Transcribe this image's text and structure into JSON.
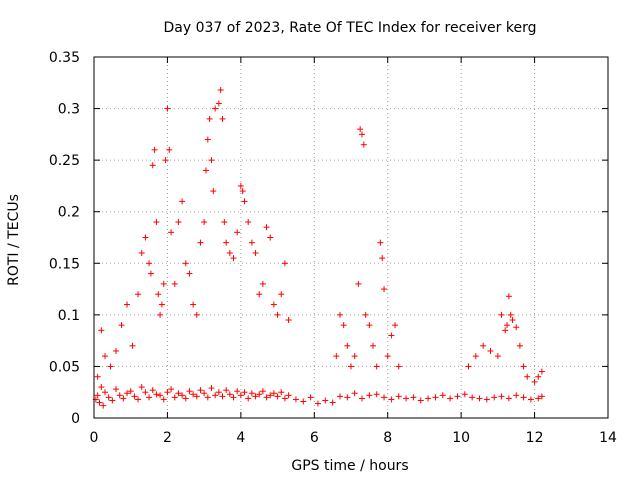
{
  "chart_data": {
    "type": "scatter",
    "title": "Day 037 of 2023, Rate Of TEC Index for receiver kerg",
    "xlabel": "GPS time / hours",
    "ylabel": "ROTI / TECUs",
    "xlim": [
      0,
      14
    ],
    "ylim": [
      0,
      0.35
    ],
    "xticks": [
      0,
      2,
      4,
      6,
      8,
      10,
      12,
      14
    ],
    "xtick_labels": [
      "0",
      "2",
      "4",
      "6",
      "8",
      "10",
      "12",
      "14"
    ],
    "yticks": [
      0,
      0.05,
      0.1,
      0.15,
      0.2,
      0.25,
      0.3,
      0.35
    ],
    "ytick_labels": [
      "0",
      "0.05",
      "0.1",
      "0.15",
      "0.2",
      "0.25",
      "0.3",
      "0.35"
    ],
    "grid": true,
    "marker": "plus",
    "marker_color": "#ff0000",
    "series": [
      {
        "x": [
          0.05,
          0.1,
          0.15,
          0.2,
          0.25,
          0.3,
          0.4,
          0.5,
          0.6,
          0.7,
          0.8,
          0.9,
          1.0,
          1.1,
          1.2,
          1.3,
          1.4,
          1.5,
          1.6,
          1.7,
          1.8,
          1.9,
          2.0,
          2.1,
          2.2,
          2.3,
          2.4,
          2.5,
          2.6,
          2.7,
          2.8,
          2.9,
          3.0,
          3.1,
          3.2,
          3.3,
          3.4,
          3.5,
          3.6,
          3.7,
          3.8,
          3.9,
          4.0,
          4.1,
          4.2,
          4.3,
          4.4,
          4.5,
          4.6,
          4.7,
          4.8,
          4.9,
          5.0,
          5.1,
          5.2,
          5.3,
          5.5,
          5.7,
          5.9,
          6.1,
          6.3,
          6.5,
          6.7,
          6.9,
          7.1,
          7.3,
          7.5,
          7.7,
          7.9,
          8.1,
          8.3,
          8.5,
          8.7,
          8.9,
          9.1,
          9.3,
          9.5,
          9.7,
          9.9,
          10.1,
          10.3,
          10.5,
          10.7,
          10.9,
          11.1,
          11.3,
          11.5,
          11.7,
          11.9,
          12.1,
          12.2
        ],
        "y": [
          0.018,
          0.022,
          0.015,
          0.03,
          0.012,
          0.025,
          0.02,
          0.017,
          0.028,
          0.022,
          0.019,
          0.024,
          0.026,
          0.021,
          0.018,
          0.03,
          0.025,
          0.02,
          0.027,
          0.023,
          0.022,
          0.018,
          0.025,
          0.028,
          0.02,
          0.024,
          0.022,
          0.019,
          0.026,
          0.023,
          0.021,
          0.027,
          0.024,
          0.02,
          0.029,
          0.022,
          0.025,
          0.021,
          0.027,
          0.023,
          0.02,
          0.026,
          0.022,
          0.025,
          0.019,
          0.024,
          0.021,
          0.023,
          0.026,
          0.02,
          0.022,
          0.024,
          0.021,
          0.025,
          0.019,
          0.022,
          0.018,
          0.016,
          0.02,
          0.014,
          0.017,
          0.015,
          0.021,
          0.02,
          0.024,
          0.019,
          0.022,
          0.023,
          0.02,
          0.018,
          0.021,
          0.019,
          0.02,
          0.017,
          0.019,
          0.02,
          0.022,
          0.019,
          0.021,
          0.023,
          0.02,
          0.019,
          0.018,
          0.02,
          0.021,
          0.019,
          0.022,
          0.02,
          0.018,
          0.019,
          0.021
        ]
      },
      {
        "x": [
          0.1,
          0.2,
          0.3,
          0.45,
          0.6,
          0.75,
          0.9,
          1.05,
          1.2,
          1.3,
          1.4,
          1.5,
          1.55,
          1.6,
          1.65,
          1.7,
          1.75,
          1.8,
          1.85,
          1.9,
          1.95,
          2.0,
          2.05,
          2.1,
          2.2,
          2.3,
          2.4,
          2.5,
          2.6,
          2.7,
          2.8,
          2.9,
          3.0,
          3.05,
          3.1,
          3.15,
          3.2,
          3.25,
          3.3,
          3.4,
          3.45,
          3.5,
          3.55,
          3.6,
          3.7,
          3.8,
          3.9,
          4.0,
          4.05,
          4.1,
          4.2,
          4.3,
          4.4,
          4.5,
          4.6,
          4.7,
          4.8,
          4.9,
          5.0,
          5.1,
          5.2,
          5.3
        ],
        "y": [
          0.04,
          0.085,
          0.06,
          0.05,
          0.065,
          0.09,
          0.11,
          0.07,
          0.12,
          0.16,
          0.175,
          0.15,
          0.14,
          0.245,
          0.26,
          0.19,
          0.12,
          0.1,
          0.11,
          0.13,
          0.25,
          0.3,
          0.26,
          0.18,
          0.13,
          0.19,
          0.21,
          0.15,
          0.14,
          0.11,
          0.1,
          0.17,
          0.19,
          0.24,
          0.27,
          0.29,
          0.25,
          0.22,
          0.3,
          0.305,
          0.318,
          0.29,
          0.19,
          0.17,
          0.16,
          0.155,
          0.18,
          0.225,
          0.22,
          0.21,
          0.19,
          0.17,
          0.16,
          0.12,
          0.13,
          0.185,
          0.175,
          0.11,
          0.1,
          0.12,
          0.15,
          0.095
        ]
      },
      {
        "x": [
          6.6,
          6.7,
          6.8,
          6.9,
          7.0,
          7.1,
          7.2,
          7.25,
          7.3,
          7.35,
          7.4,
          7.5,
          7.6,
          7.7,
          7.8,
          7.85,
          7.9,
          8.0,
          8.1,
          8.2,
          8.3
        ],
        "y": [
          0.06,
          0.1,
          0.09,
          0.07,
          0.05,
          0.06,
          0.13,
          0.28,
          0.275,
          0.265,
          0.1,
          0.09,
          0.07,
          0.05,
          0.17,
          0.155,
          0.125,
          0.06,
          0.08,
          0.09,
          0.05
        ]
      },
      {
        "x": [
          10.2,
          10.4,
          10.6,
          10.8,
          11.0,
          11.1,
          11.2,
          11.25,
          11.3,
          11.35,
          11.4,
          11.5,
          11.6,
          11.7,
          11.8,
          12.0,
          12.1,
          12.2
        ],
        "y": [
          0.05,
          0.06,
          0.07,
          0.065,
          0.06,
          0.1,
          0.085,
          0.09,
          0.118,
          0.1,
          0.095,
          0.088,
          0.07,
          0.05,
          0.04,
          0.035,
          0.04,
          0.045
        ]
      }
    ]
  }
}
